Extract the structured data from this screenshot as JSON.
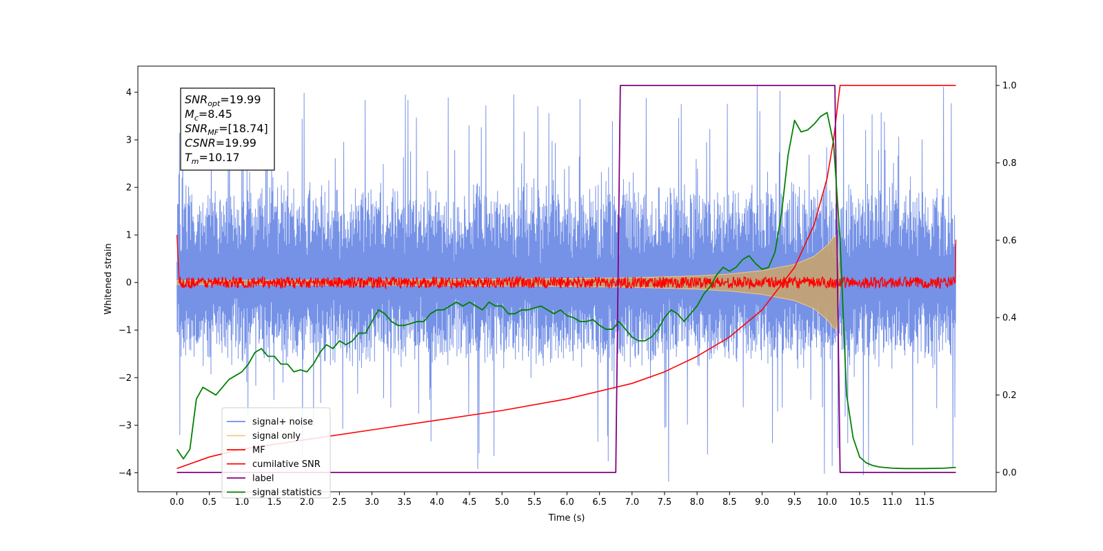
{
  "chart_data": {
    "type": "line",
    "xlabel": "Time (s)",
    "ylabel": "Whitened strain",
    "y2label": "",
    "xlim": [
      -0.6,
      12.6
    ],
    "ylim": [
      -4.4,
      4.55
    ],
    "y2lim": [
      -0.05,
      1.05
    ],
    "x_ticks": [
      0.0,
      0.5,
      1.0,
      1.5,
      2.0,
      2.5,
      3.0,
      3.5,
      4.0,
      4.5,
      5.0,
      5.5,
      6.0,
      6.5,
      7.0,
      7.5,
      8.0,
      8.5,
      9.0,
      9.5,
      10.0,
      10.5,
      11.0,
      11.5
    ],
    "x_tick_labels": [
      "0.0",
      "0.5",
      "1.0",
      "1.5",
      "2.0",
      "2.5",
      "3.0",
      "3.5",
      "4.0",
      "4.5",
      "5.0",
      "5.5",
      "6.0",
      "6.5",
      "7.0",
      "7.5",
      "8.0",
      "8.5",
      "9.0",
      "9.5",
      "10.0",
      "10.5",
      "11.0",
      "11.5"
    ],
    "y_ticks": [
      -4,
      -3,
      -2,
      -1,
      0,
      1,
      2,
      3,
      4
    ],
    "y_tick_labels": [
      "−4",
      "−3",
      "−2",
      "−1",
      "0",
      "1",
      "2",
      "3",
      "4"
    ],
    "y2_ticks": [
      0.0,
      0.2,
      0.4,
      0.6,
      0.8,
      1.0
    ],
    "y2_tick_labels": [
      "0.0",
      "0.2",
      "0.4",
      "0.6",
      "0.8",
      "1.0"
    ],
    "grid": false,
    "legend_position": "lower-left",
    "legend": [
      {
        "name": "signal+ noise",
        "color": "#6f8ce6"
      },
      {
        "name": "signal only",
        "color": "#f5c882"
      },
      {
        "name": "MF",
        "color": "#ff0000"
      },
      {
        "name": "cumilative SNR",
        "color": "#ff0000"
      },
      {
        "name": "label",
        "color": "#800080"
      },
      {
        "name": "signal statistics",
        "color": "#008000"
      }
    ],
    "annotations": [
      {
        "sym": "SNR",
        "sub": "opt",
        "value": "=19.99"
      },
      {
        "sym": "M",
        "sub": "c",
        "value": "=8.45"
      },
      {
        "sym": "SNR",
        "sub": "MF",
        "value": "=[18.74]"
      },
      {
        "sym": "CSNR",
        "sub": "",
        "value": "=19.99"
      },
      {
        "sym": "T",
        "sub": "m",
        "value": "=10.17"
      }
    ],
    "series": [
      {
        "name": "signal+ noise",
        "axis": "left",
        "style": "noise-band",
        "x_range": [
          0.0,
          11.98
        ],
        "envelope_upper": 2.0,
        "envelope_lower": -1.6,
        "peak_max": 4.15,
        "peak_min": -3.95
      },
      {
        "name": "signal only",
        "axis": "left",
        "style": "chirp-envelope",
        "x": [
          0.0,
          2.0,
          4.0,
          6.0,
          7.0,
          8.0,
          8.5,
          9.0,
          9.5,
          9.8,
          10.0,
          10.1,
          10.15,
          10.2
        ],
        "amplitude": [
          0.04,
          0.05,
          0.06,
          0.08,
          0.1,
          0.14,
          0.18,
          0.25,
          0.38,
          0.55,
          0.78,
          0.95,
          1.0,
          0.0
        ]
      },
      {
        "name": "MF",
        "axis": "left",
        "style": "noise-band",
        "x_range": [
          0.0,
          11.98
        ],
        "center": 0.0,
        "amplitude": 0.12,
        "edge_start": 1.0,
        "edge_end": 0.9
      },
      {
        "name": "cumilative SNR",
        "axis": "right",
        "x": [
          0.0,
          0.5,
          1.0,
          2.0,
          3.0,
          4.0,
          5.0,
          6.0,
          6.5,
          7.0,
          7.5,
          8.0,
          8.5,
          9.0,
          9.5,
          9.8,
          10.0,
          10.1,
          10.17,
          10.2,
          11.98
        ],
        "y": [
          0.01,
          0.04,
          0.06,
          0.085,
          0.11,
          0.135,
          0.16,
          0.19,
          0.21,
          0.23,
          0.26,
          0.3,
          0.35,
          0.42,
          0.53,
          0.64,
          0.76,
          0.86,
          0.96,
          1.0,
          1.0
        ]
      },
      {
        "name": "label",
        "axis": "right",
        "x": [
          0.0,
          6.75,
          6.82,
          10.12,
          10.2,
          11.98
        ],
        "y": [
          0.0,
          0.0,
          1.0,
          1.0,
          0.0,
          0.0
        ]
      },
      {
        "name": "signal statistics",
        "axis": "right",
        "x": [
          0.0,
          0.1,
          0.2,
          0.3,
          0.4,
          0.5,
          0.6,
          0.7,
          0.8,
          0.9,
          1.0,
          1.1,
          1.2,
          1.3,
          1.4,
          1.5,
          1.6,
          1.7,
          1.8,
          1.9,
          2.0,
          2.1,
          2.2,
          2.3,
          2.4,
          2.5,
          2.6,
          2.7,
          2.8,
          2.9,
          3.0,
          3.1,
          3.2,
          3.3,
          3.4,
          3.5,
          3.6,
          3.7,
          3.8,
          3.9,
          4.0,
          4.1,
          4.2,
          4.3,
          4.4,
          4.5,
          4.6,
          4.7,
          4.8,
          4.9,
          5.0,
          5.1,
          5.2,
          5.3,
          5.4,
          5.5,
          5.6,
          5.7,
          5.8,
          5.9,
          6.0,
          6.1,
          6.2,
          6.3,
          6.4,
          6.5,
          6.6,
          6.7,
          6.8,
          6.9,
          7.0,
          7.1,
          7.2,
          7.3,
          7.4,
          7.5,
          7.6,
          7.7,
          7.8,
          7.9,
          8.0,
          8.1,
          8.2,
          8.3,
          8.4,
          8.5,
          8.6,
          8.7,
          8.8,
          8.9,
          9.0,
          9.1,
          9.2,
          9.3,
          9.4,
          9.5,
          9.6,
          9.7,
          9.8,
          9.9,
          10.0,
          10.1,
          10.2,
          10.3,
          10.4,
          10.5,
          10.6,
          10.7,
          10.8,
          11.0,
          11.2,
          11.5,
          11.8,
          11.98
        ],
        "y": [
          0.06,
          0.035,
          0.06,
          0.19,
          0.22,
          0.21,
          0.2,
          0.22,
          0.24,
          0.25,
          0.26,
          0.28,
          0.31,
          0.32,
          0.3,
          0.3,
          0.28,
          0.28,
          0.26,
          0.265,
          0.26,
          0.28,
          0.31,
          0.33,
          0.32,
          0.34,
          0.33,
          0.34,
          0.36,
          0.36,
          0.39,
          0.42,
          0.41,
          0.39,
          0.38,
          0.38,
          0.385,
          0.39,
          0.39,
          0.41,
          0.42,
          0.42,
          0.43,
          0.44,
          0.43,
          0.44,
          0.43,
          0.42,
          0.44,
          0.43,
          0.43,
          0.41,
          0.41,
          0.42,
          0.42,
          0.425,
          0.43,
          0.42,
          0.41,
          0.42,
          0.405,
          0.4,
          0.39,
          0.39,
          0.395,
          0.38,
          0.37,
          0.37,
          0.39,
          0.37,
          0.35,
          0.34,
          0.34,
          0.35,
          0.37,
          0.4,
          0.42,
          0.41,
          0.39,
          0.41,
          0.43,
          0.46,
          0.48,
          0.51,
          0.53,
          0.52,
          0.53,
          0.55,
          0.56,
          0.54,
          0.525,
          0.53,
          0.57,
          0.67,
          0.82,
          0.91,
          0.88,
          0.885,
          0.9,
          0.92,
          0.93,
          0.85,
          0.6,
          0.2,
          0.09,
          0.04,
          0.025,
          0.018,
          0.014,
          0.011,
          0.01,
          0.01,
          0.011,
          0.013
        ]
      }
    ]
  }
}
